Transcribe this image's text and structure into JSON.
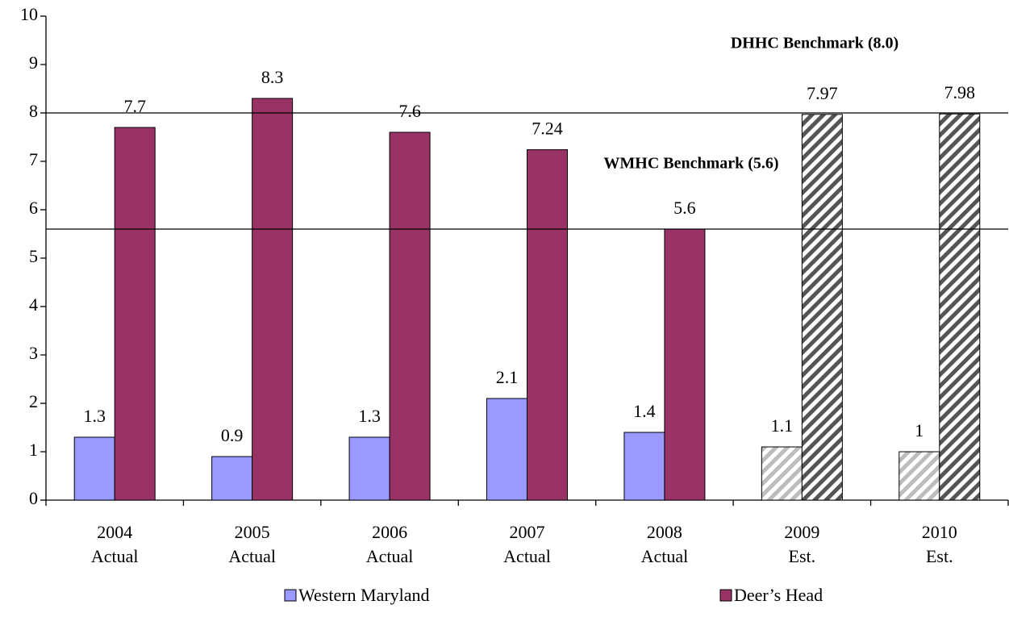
{
  "chart_data": {
    "type": "bar",
    "categories": [
      [
        "2004",
        "Actual"
      ],
      [
        "2005",
        "Actual"
      ],
      [
        "2006",
        "Actual"
      ],
      [
        "2007",
        "Actual"
      ],
      [
        "2008",
        "Actual"
      ],
      [
        "2009",
        "Est."
      ],
      [
        "2010",
        "Est."
      ]
    ],
    "series": [
      {
        "name": "Western Maryland",
        "color": "#9999ff",
        "values": [
          1.3,
          0.9,
          1.3,
          2.1,
          1.4,
          1.1,
          1
        ]
      },
      {
        "name": "Deer’s Head",
        "color": "#993366",
        "values": [
          7.7,
          8.3,
          7.6,
          7.24,
          5.6,
          7.97,
          7.98
        ]
      }
    ],
    "hatched": [
      false,
      false,
      false,
      false,
      false,
      true,
      true
    ],
    "reference_lines": [
      {
        "value": 8.0,
        "label": "DHHC Benchmark (8.0)"
      },
      {
        "value": 5.6,
        "label": "WMHC Benchmark (5.6)"
      }
    ],
    "ylim": [
      0,
      10
    ],
    "yticks": [
      0,
      1,
      2,
      3,
      4,
      5,
      6,
      7,
      8,
      9,
      10
    ],
    "grid": false,
    "legend": "bottom"
  }
}
